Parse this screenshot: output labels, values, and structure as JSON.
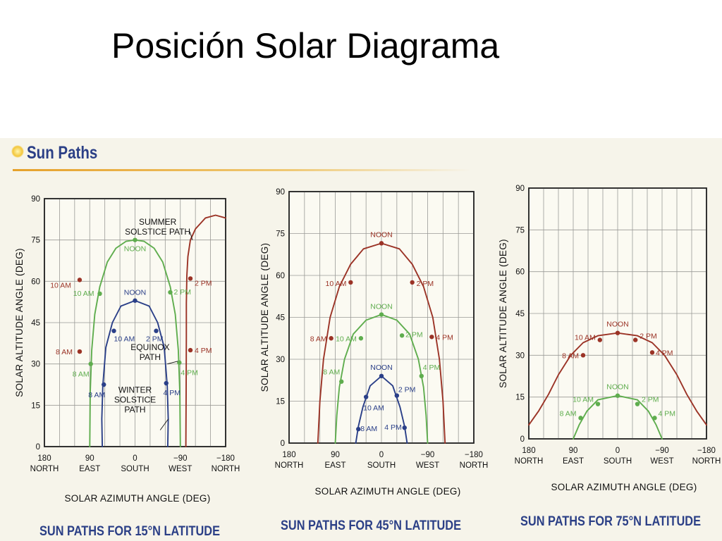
{
  "slide": {
    "title": "Posición Solar Diagrama"
  },
  "section": {
    "title": "Sun Paths"
  },
  "colors": {
    "summer": "#9b3326",
    "equinox": "#5fad4e",
    "winter": "#2a3f88",
    "caption": "#2b3f86"
  },
  "chart_data": [
    {
      "type": "line",
      "title": "SUN PATHS FOR 15°N LATITUDE",
      "xlabel": "SOLAR AZIMUTH ANGLE (DEG)",
      "ylabel": "SOLAR ALTITUDE ANGLE (DEG)",
      "xlim": [
        180,
        -180
      ],
      "ylim": [
        0,
        90
      ],
      "x_ticks": [
        {
          "v": 180,
          "label": "180",
          "dir": "NORTH"
        },
        {
          "v": 90,
          "label": "90",
          "dir": "EAST"
        },
        {
          "v": 0,
          "label": "0",
          "dir": "SOUTH"
        },
        {
          "v": -90,
          "label": "−90",
          "dir": "WEST"
        },
        {
          "v": -180,
          "label": "−180",
          "dir": "NORTH"
        }
      ],
      "y_ticks": [
        0,
        15,
        30,
        45,
        60,
        75,
        90
      ],
      "grid": true,
      "series": [
        {
          "key": "summer",
          "color": "#9b3326",
          "line": [
            [
              -180,
              83
            ],
            [
              -160,
              84
            ],
            [
              -140,
              83
            ],
            [
              -120,
              79
            ],
            [
              -110,
              75
            ],
            [
              -105,
              69
            ],
            [
              -103,
              62
            ],
            [
              -102,
              52
            ],
            [
              -102,
              40
            ],
            [
              -101.5,
              20
            ],
            [
              -101,
              0
            ]
          ],
          "points": [
            {
              "x": 110,
              "y": 60.5,
              "label": "10 AM",
              "dx": -12,
              "dy": 11,
              "anchor": "end"
            },
            {
              "x": 110,
              "y": 34.5,
              "label": "8 AM",
              "dx": -10,
              "dy": 4,
              "anchor": "end"
            },
            {
              "x": -110,
              "y": 61,
              "label": "2 PM",
              "dx": 6,
              "dy": 10,
              "anchor": "start"
            },
            {
              "x": -110,
              "y": 35,
              "label": "4 PM",
              "dx": 6,
              "dy": 4,
              "anchor": "start"
            }
          ]
        },
        {
          "key": "equinox",
          "color": "#5fad4e",
          "line": [
            [
              90,
              0
            ],
            [
              89,
              20
            ],
            [
              86,
              35
            ],
            [
              80,
              48
            ],
            [
              70,
              58
            ],
            [
              55,
              67
            ],
            [
              38,
              72
            ],
            [
              18,
              74.5
            ],
            [
              0,
              75
            ],
            [
              -18,
              74.5
            ],
            [
              -38,
              72
            ],
            [
              -55,
              67
            ],
            [
              -70,
              58
            ],
            [
              -80,
              48
            ],
            [
              -86,
              35
            ],
            [
              -89,
              20
            ],
            [
              -90,
              0
            ]
          ],
          "points": [
            {
              "x": 0,
              "y": 75,
              "label": "NOON",
              "dx": 0,
              "dy": 16,
              "anchor": "middle"
            },
            {
              "x": 70,
              "y": 55.5,
              "label": "10 AM",
              "dx": -8,
              "dy": 3,
              "anchor": "end"
            },
            {
              "x": -70,
              "y": 56,
              "label": "2 PM",
              "dx": 5,
              "dy": 3,
              "anchor": "start"
            },
            {
              "x": 88,
              "y": 30,
              "label": "8 AM",
              "dx": -2,
              "dy": 18,
              "anchor": "end"
            },
            {
              "x": -88,
              "y": 30.5,
              "label": "4 PM",
              "dx": 2,
              "dy": 18,
              "anchor": "start"
            }
          ]
        },
        {
          "key": "winter",
          "color": "#2a3f88",
          "line": [
            [
              65,
              0
            ],
            [
              66,
              10
            ],
            [
              64,
              22
            ],
            [
              58,
              36
            ],
            [
              45,
              45
            ],
            [
              28,
              51
            ],
            [
              0,
              53
            ],
            [
              -28,
              51
            ],
            [
              -45,
              45
            ],
            [
              -58,
              36
            ],
            [
              -64,
              22
            ],
            [
              -66,
              10
            ],
            [
              -65,
              0
            ]
          ],
          "points": [
            {
              "x": 0,
              "y": 53,
              "label": "NOON",
              "dx": 0,
              "dy": -8,
              "anchor": "middle"
            },
            {
              "x": 42,
              "y": 42,
              "label": "10 AM",
              "dx": 0,
              "dy": 15,
              "anchor": "start"
            },
            {
              "x": -42,
              "y": 42,
              "label": "2 PM",
              "dx": 10,
              "dy": 15,
              "anchor": "end"
            },
            {
              "x": 62,
              "y": 22.5,
              "label": "8 AM",
              "dx": -10,
              "dy": 18,
              "anchor": "middle"
            },
            {
              "x": -62,
              "y": 23,
              "label": "4 PM",
              "dx": 8,
              "dy": 17,
              "anchor": "middle"
            }
          ]
        }
      ],
      "annotations": [
        {
          "lines": [
            "SUMMER",
            "SOLSTICE PATH"
          ],
          "ax": -45,
          "ay": 80.5,
          "anchor": "middle",
          "leader": [
            [
              -109,
              78
            ],
            [
              -114,
              75
            ]
          ]
        },
        {
          "lines": [
            "EQUINOX",
            "PATH"
          ],
          "ax": -30,
          "ay": 35,
          "anchor": "middle",
          "leader": [
            [
              -64,
              30
            ],
            [
              -85,
              31
            ]
          ]
        },
        {
          "lines": [
            "WINTER",
            "SOLSTICE",
            "PATH"
          ],
          "ax": 0,
          "ay": 19.5,
          "anchor": "middle",
          "leader": [
            [
              -50,
              6
            ],
            [
              -66,
              10
            ]
          ]
        }
      ]
    },
    {
      "type": "line",
      "title": "SUN PATHS FOR 45°N LATITUDE",
      "xlabel": "SOLAR AZIMUTH ANGLE (DEG)",
      "ylabel": "SOLAR ALTITUDE ANGLE (DEG)",
      "xlim": [
        180,
        -180
      ],
      "ylim": [
        0,
        90
      ],
      "x_ticks": [
        {
          "v": 180,
          "label": "180",
          "dir": "NORTH"
        },
        {
          "v": 90,
          "label": "90",
          "dir": "EAST"
        },
        {
          "v": 0,
          "label": "0",
          "dir": "SOUTH"
        },
        {
          "v": -90,
          "label": "−90",
          "dir": "WEST"
        },
        {
          "v": -180,
          "label": "−180",
          "dir": "NORTH"
        }
      ],
      "y_ticks": [
        0,
        15,
        30,
        45,
        60,
        75,
        90
      ],
      "grid": true,
      "series": [
        {
          "key": "summer",
          "color": "#9b3326",
          "line": [
            [
              124,
              0
            ],
            [
              120,
              15
            ],
            [
              113,
              30
            ],
            [
              100,
              45
            ],
            [
              82,
              56
            ],
            [
              60,
              64
            ],
            [
              35,
              69.5
            ],
            [
              0,
              71.5
            ],
            [
              -35,
              69.5
            ],
            [
              -60,
              64
            ],
            [
              -82,
              56
            ],
            [
              -100,
              45
            ],
            [
              -113,
              30
            ],
            [
              -120,
              15
            ],
            [
              -124,
              0
            ]
          ],
          "points": [
            {
              "x": 0,
              "y": 71.5,
              "label": "NOON",
              "dx": 0,
              "dy": -9,
              "anchor": "middle"
            },
            {
              "x": 60,
              "y": 57.5,
              "label": "10 AM",
              "dx": -6,
              "dy": 5,
              "anchor": "end"
            },
            {
              "x": -60,
              "y": 57.5,
              "label": "2 PM",
              "dx": 6,
              "dy": 5,
              "anchor": "start"
            },
            {
              "x": 98,
              "y": 37.5,
              "label": "8 AM",
              "dx": -6,
              "dy": 4,
              "anchor": "end"
            },
            {
              "x": -98,
              "y": 38,
              "label": "4 PM",
              "dx": 6,
              "dy": 4,
              "anchor": "start"
            }
          ]
        },
        {
          "key": "equinox",
          "color": "#5fad4e",
          "line": [
            [
              90,
              0
            ],
            [
              87,
              10
            ],
            [
              82,
              20
            ],
            [
              72,
              30
            ],
            [
              55,
              39
            ],
            [
              30,
              44
            ],
            [
              0,
              46
            ],
            [
              -30,
              44
            ],
            [
              -55,
              39
            ],
            [
              -72,
              30
            ],
            [
              -82,
              20
            ],
            [
              -87,
              10
            ],
            [
              -90,
              0
            ]
          ],
          "points": [
            {
              "x": 0,
              "y": 46,
              "label": "NOON",
              "dx": 0,
              "dy": -8,
              "anchor": "middle"
            },
            {
              "x": 40,
              "y": 37.5,
              "label": "10 AM",
              "dx": -6,
              "dy": 4,
              "anchor": "end"
            },
            {
              "x": -40,
              "y": 38.5,
              "label": "2 PM",
              "dx": 5,
              "dy": 2,
              "anchor": "start"
            },
            {
              "x": 78,
              "y": 22,
              "label": "8 AM",
              "dx": -2,
              "dy": -10,
              "anchor": "end"
            },
            {
              "x": -78,
              "y": 24,
              "label": "4 PM",
              "dx": 2,
              "dy": -9,
              "anchor": "start"
            }
          ]
        },
        {
          "key": "winter",
          "color": "#2a3f88",
          "line": [
            [
              50,
              0
            ],
            [
              45,
              6
            ],
            [
              36,
              13
            ],
            [
              22,
              20.5
            ],
            [
              0,
              24
            ],
            [
              -22,
              20.5
            ],
            [
              -36,
              13
            ],
            [
              -45,
              6
            ],
            [
              -50,
              0
            ]
          ],
          "points": [
            {
              "x": 0,
              "y": 24,
              "label": "NOON",
              "dx": 0,
              "dy": -9,
              "anchor": "middle"
            },
            {
              "x": 30,
              "y": 16.5,
              "label": "10 AM",
              "dx": -4,
              "dy": 19,
              "anchor": "start"
            },
            {
              "x": -30,
              "y": 17,
              "label": "2 PM",
              "dx": 2,
              "dy": -5,
              "anchor": "start"
            },
            {
              "x": 45,
              "y": 5,
              "label": "8 AM",
              "dx": 3,
              "dy": 3,
              "anchor": "start"
            },
            {
              "x": -45,
              "y": 5.5,
              "label": "4 PM",
              "dx": -4,
              "dy": 3,
              "anchor": "end"
            }
          ]
        }
      ],
      "annotations": []
    },
    {
      "type": "line",
      "title": "SUN PATHS FOR 75°N LATITUDE",
      "xlabel": "SOLAR AZIMUTH ANGLE (DEG)",
      "ylabel": "SOLAR ALTITUDE ANGLE (DEG)",
      "xlim": [
        180,
        -180
      ],
      "ylim": [
        0,
        90
      ],
      "x_ticks": [
        {
          "v": 180,
          "label": "180",
          "dir": "NORTH"
        },
        {
          "v": 90,
          "label": "90",
          "dir": "EAST"
        },
        {
          "v": 0,
          "label": "0",
          "dir": "SOUTH"
        },
        {
          "v": -90,
          "label": "−90",
          "dir": "WEST"
        },
        {
          "v": -180,
          "label": "−180",
          "dir": "NORTH"
        }
      ],
      "y_ticks": [
        0,
        15,
        30,
        45,
        60,
        75,
        90
      ],
      "grid": true,
      "series": [
        {
          "key": "summer",
          "color": "#9b3326",
          "line": [
            [
              180,
              5
            ],
            [
              160,
              10
            ],
            [
              140,
              16
            ],
            [
              120,
              23
            ],
            [
              95,
              30
            ],
            [
              70,
              34.5
            ],
            [
              40,
              37
            ],
            [
              0,
              38
            ],
            [
              -40,
              37
            ],
            [
              -70,
              34.5
            ],
            [
              -95,
              30
            ],
            [
              -120,
              23
            ],
            [
              -140,
              16
            ],
            [
              -160,
              10
            ],
            [
              -180,
              5
            ]
          ],
          "points": [
            {
              "x": 0,
              "y": 38,
              "label": "NOON",
              "dx": 0,
              "dy": -9,
              "anchor": "middle"
            },
            {
              "x": 36,
              "y": 35.5,
              "label": "10 AM",
              "dx": -6,
              "dy": 0,
              "anchor": "end"
            },
            {
              "x": -36,
              "y": 35.5,
              "label": "2 PM",
              "dx": 6,
              "dy": -2,
              "anchor": "start"
            },
            {
              "x": 70,
              "y": 30,
              "label": "8 AM",
              "dx": -6,
              "dy": 4,
              "anchor": "end"
            },
            {
              "x": -70,
              "y": 31,
              "label": "4 PM",
              "dx": 5,
              "dy": 4,
              "anchor": "start"
            }
          ]
        },
        {
          "key": "equinox",
          "color": "#5fad4e",
          "line": [
            [
              90,
              0
            ],
            [
              78,
              5
            ],
            [
              62,
              10
            ],
            [
              40,
              14
            ],
            [
              0,
              15.5
            ],
            [
              -40,
              14
            ],
            [
              -62,
              10
            ],
            [
              -78,
              5
            ],
            [
              -90,
              0
            ]
          ],
          "points": [
            {
              "x": 0,
              "y": 15.5,
              "label": "NOON",
              "dx": 0,
              "dy": -9,
              "anchor": "middle"
            },
            {
              "x": 40,
              "y": 12.5,
              "label": "10 AM",
              "dx": -6,
              "dy": -3,
              "anchor": "end"
            },
            {
              "x": -40,
              "y": 12.5,
              "label": "2 PM",
              "dx": 6,
              "dy": -3,
              "anchor": "start"
            },
            {
              "x": 75,
              "y": 7.5,
              "label": "8 AM",
              "dx": -6,
              "dy": -3,
              "anchor": "end"
            },
            {
              "x": -75,
              "y": 7.5,
              "label": "4 PM",
              "dx": 5,
              "dy": -3,
              "anchor": "start"
            }
          ]
        }
      ],
      "annotations": []
    }
  ]
}
